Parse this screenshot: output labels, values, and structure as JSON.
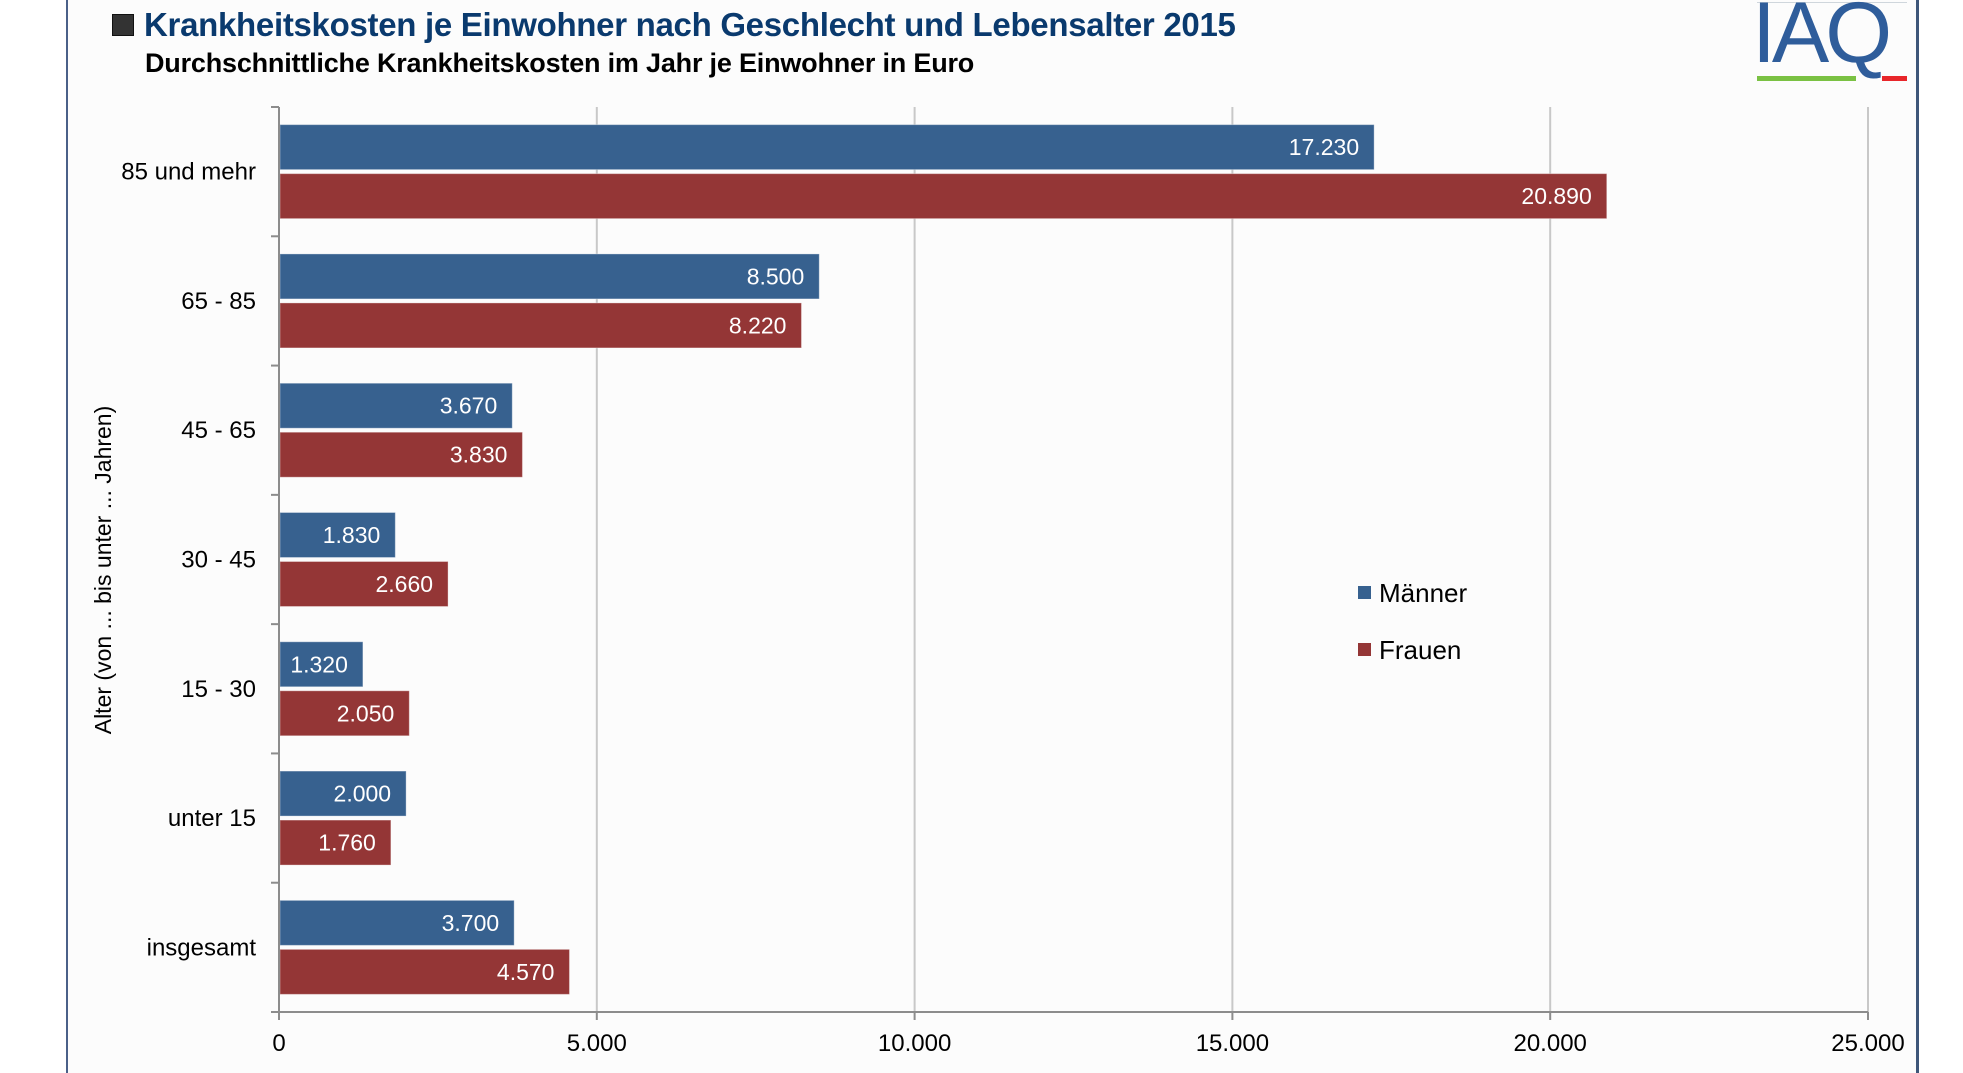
{
  "header": {
    "title": "Krankheitskosten je Einwohner nach Geschlecht und Lebensalter 2015",
    "subtitle": "Durchschnittliche Krankheitskosten im Jahr je Einwohner in Euro",
    "logo_text": "IAQ",
    "title_bullet_icon": "square-bullet-icon"
  },
  "colors": {
    "title": "#0a3a6e",
    "maenner": "#37618f",
    "frauen": "#943636",
    "gridline": "#c8c8c8",
    "axis": "#8c8c8c",
    "logo_blue": "#2f5d9b",
    "logo_green": "#7ac143",
    "logo_red": "#e8262a"
  },
  "chart_data": {
    "type": "bar",
    "orientation": "horizontal",
    "title": "Krankheitskosten je Einwohner nach Geschlecht und Lebensalter 2015",
    "subtitle": "Durchschnittliche Krankheitskosten im Jahr je Einwohner in Euro",
    "xlabel": "",
    "ylabel": "Alter (von ... bis unter ... Jahren)",
    "categories": [
      "85 und mehr",
      "65 - 85",
      "45 - 65",
      "30 - 45",
      "15 - 30",
      "unter 15",
      "insgesamt"
    ],
    "series": [
      {
        "name": "Männer",
        "color": "#37618f",
        "values": [
          17230,
          8500,
          3670,
          1830,
          1320,
          2000,
          3700
        ],
        "labels": [
          "17.230",
          "8.500",
          "3.670",
          "1.830",
          "1.320",
          "2.000",
          "3.700"
        ]
      },
      {
        "name": "Frauen",
        "color": "#943636",
        "values": [
          20890,
          8220,
          3830,
          2660,
          2050,
          1760,
          4570
        ],
        "labels": [
          "20.890",
          "8.220",
          "3.830",
          "2.660",
          "2.050",
          "1.760",
          "4.570"
        ]
      }
    ],
    "xlim": [
      0,
      25000
    ],
    "xticks": [
      0,
      5000,
      10000,
      15000,
      20000,
      25000
    ],
    "xtick_labels": [
      "0",
      "5.000",
      "10.000",
      "15.000",
      "20.000",
      "25.000"
    ],
    "grid": "vertical",
    "legend": {
      "placement": "center-right",
      "entries": [
        "Männer",
        "Frauen"
      ]
    }
  }
}
